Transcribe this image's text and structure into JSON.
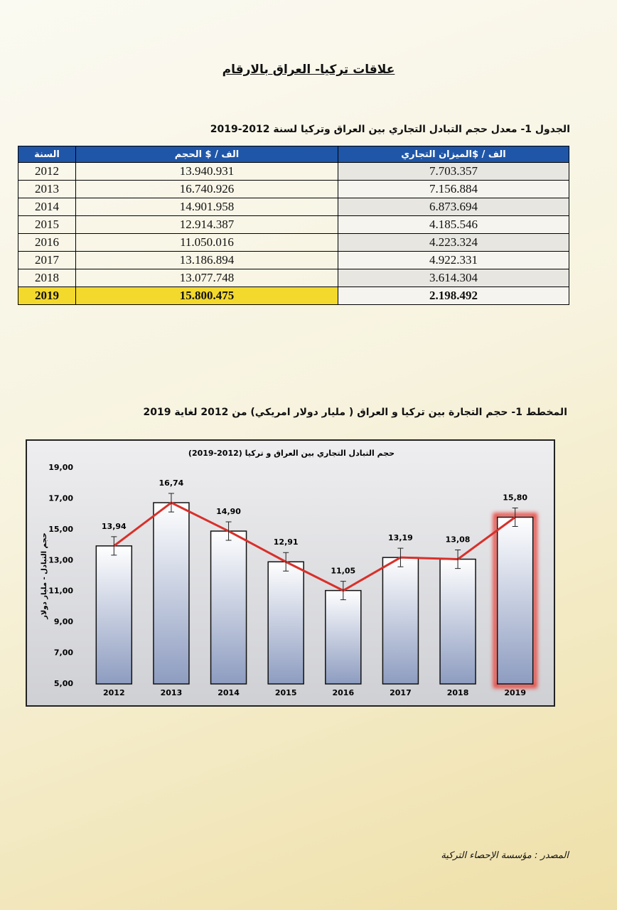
{
  "header": {
    "title": "علاقات تركيا- العراق بالارقام"
  },
  "table": {
    "caption": "الجدول 1- معدل حجم التبادل التجاري بين العراق وتركيا لسنة 2012-2019",
    "columns": [
      "السنة",
      "الف / $ الحجم",
      "الف / $الميزان التجاري"
    ],
    "rows": [
      [
        "2012",
        "13.940.931",
        "7.703.357"
      ],
      [
        "2013",
        "16.740.926",
        "7.156.884"
      ],
      [
        "2014",
        "14.901.958",
        "6.873.694"
      ],
      [
        "2015",
        "12.914.387",
        "4.185.546"
      ],
      [
        "2016",
        "11.050.016",
        "4.223.324"
      ],
      [
        "2017",
        "13.186.894",
        "4.922.331"
      ],
      [
        "2018",
        "13.077.748",
        "3.614.304"
      ],
      [
        "2019",
        "15.800.475",
        "2.198.492"
      ]
    ]
  },
  "chart_caption": "المخطط 1- حجم التجارة بين تركيا و العراق ( مليار دولار امريكي) من 2012 لغاية 2019",
  "chart_data": {
    "type": "bar",
    "title": "حجم التبادل التجاري بين العراق و تركيا (2012-2019)",
    "y_label": "حجم التبادل - مليار دولار",
    "categories": [
      "2012",
      "2013",
      "2014",
      "2015",
      "2016",
      "2017",
      "2018",
      "2019"
    ],
    "values": [
      13.94,
      16.74,
      14.9,
      12.91,
      11.05,
      13.19,
      13.08,
      15.8
    ],
    "value_labels": [
      "13,94",
      "16,74",
      "14,90",
      "12,91",
      "11,05",
      "13,19",
      "13,08",
      "15,80"
    ],
    "errors": [
      0.6,
      0.6,
      0.6,
      0.6,
      0.6,
      0.6,
      0.6,
      0.6
    ],
    "line_color": "#d8302a",
    "highlight": {
      "category": "2019",
      "color": "#e8453c"
    },
    "ylim": [
      5,
      19
    ],
    "yticks": [
      {
        "value": 5,
        "label": "5,00"
      },
      {
        "value": 7,
        "label": "7,00"
      },
      {
        "value": 9,
        "label": "9,00"
      },
      {
        "value": 11,
        "label": "11,00"
      },
      {
        "value": 13,
        "label": "13,00"
      },
      {
        "value": 15,
        "label": "15,00"
      },
      {
        "value": 17,
        "label": "17,00"
      },
      {
        "value": 19,
        "label": "19,00"
      }
    ]
  },
  "source": "المصدر : مؤسسة الإحصاء التركية"
}
